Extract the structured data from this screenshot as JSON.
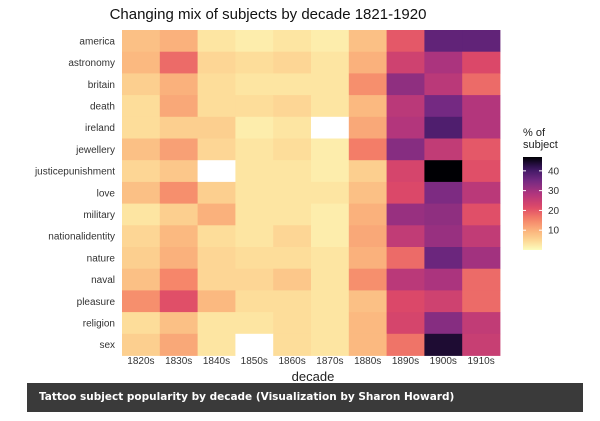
{
  "caption": "Tattoo subject popularity by decade (Visualization by Sharon Howard)",
  "chart_data": {
    "type": "heatmap",
    "title": "Changing mix of subjects by decade 1821-1920",
    "xlabel": "decade",
    "ylabel": "",
    "x_categories": [
      "1820s",
      "1830s",
      "1840s",
      "1850s",
      "1860s",
      "1870s",
      "1880s",
      "1890s",
      "1900s",
      "1910s"
    ],
    "y_categories": [
      "america",
      "astronomy",
      "britain",
      "death",
      "ireland",
      "jewellery",
      "justicepunishment",
      "love",
      "military",
      "nationalidentity",
      "nature",
      "naval",
      "pleasure",
      "religion",
      "sex"
    ],
    "values": [
      [
        8,
        10,
        3,
        2,
        3,
        2,
        8,
        20,
        37,
        37
      ],
      [
        9,
        18,
        5,
        4,
        5,
        3,
        10,
        24,
        29,
        22
      ],
      [
        6,
        10,
        4,
        3,
        3,
        3,
        14,
        32,
        27,
        18
      ],
      [
        4,
        11,
        4,
        4,
        5,
        3,
        9,
        27,
        35,
        28
      ],
      [
        4,
        6,
        6,
        2,
        3,
        null,
        11,
        28,
        39,
        28
      ],
      [
        8,
        12,
        5,
        3,
        4,
        2,
        16,
        33,
        26,
        20
      ],
      [
        5,
        7,
        null,
        3,
        3,
        2,
        6,
        23,
        47,
        21
      ],
      [
        8,
        14,
        6,
        3,
        3,
        3,
        8,
        22,
        34,
        27
      ],
      [
        3,
        6,
        10,
        3,
        3,
        2,
        10,
        31,
        32,
        21
      ],
      [
        5,
        9,
        4,
        3,
        5,
        2,
        11,
        26,
        31,
        26
      ],
      [
        6,
        10,
        5,
        4,
        4,
        3,
        10,
        18,
        36,
        30
      ],
      [
        8,
        15,
        5,
        5,
        7,
        3,
        14,
        27,
        29,
        18
      ],
      [
        14,
        21,
        9,
        4,
        4,
        3,
        8,
        22,
        24,
        18
      ],
      [
        4,
        8,
        3,
        3,
        4,
        3,
        9,
        23,
        33,
        26
      ],
      [
        6,
        11,
        3,
        null,
        4,
        3,
        9,
        17,
        44,
        25
      ]
    ],
    "legend": {
      "title": "% of\nsubject",
      "ticks": [
        10,
        20,
        30,
        40
      ],
      "range": [
        0,
        47
      ],
      "position": "right"
    },
    "colors": {
      "low": "#fcfdbf",
      "high": "#000004",
      "na": "#ffffff"
    },
    "grid": false
  }
}
